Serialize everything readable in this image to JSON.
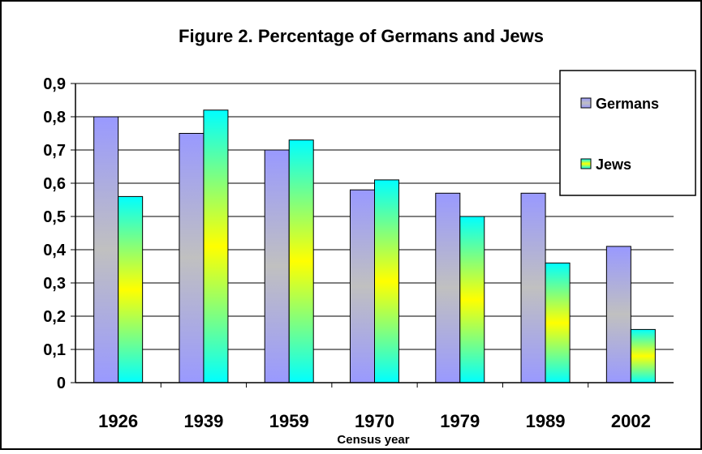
{
  "chart_data": {
    "type": "bar",
    "title": "Figure 2. Percentage of Germans and Jews",
    "xlabel": "Census year",
    "ylabel": "",
    "categories": [
      "1926",
      "1939",
      "1959",
      "1970",
      "1979",
      "1989",
      "2002"
    ],
    "ylim": [
      0,
      0.9
    ],
    "yticks": [
      "0",
      "0,1",
      "0,2",
      "0,3",
      "0,4",
      "0,5",
      "0,6",
      "0,7",
      "0,8",
      "0,9"
    ],
    "series": [
      {
        "name": "Germans",
        "values": [
          0.8,
          0.75,
          0.7,
          0.58,
          0.57,
          0.57,
          0.41
        ]
      },
      {
        "name": "Jews",
        "values": [
          0.56,
          0.82,
          0.73,
          0.61,
          0.5,
          0.36,
          0.16
        ]
      }
    ],
    "grid": true,
    "legend": "right",
    "colors": {
      "germans_edge": "#9999ff",
      "germans_mid": "#c0c0c0",
      "jews_edge": "#00ffff",
      "jews_mid": "#ffff00",
      "gridline": "#000000"
    }
  }
}
